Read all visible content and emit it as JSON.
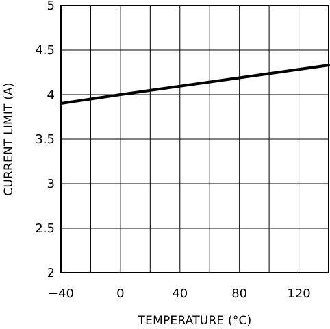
{
  "chart_data": {
    "type": "line",
    "title": "",
    "xlabel": "TEMPERATURE (°C)",
    "ylabel": "CURRENT LIMIT (A)",
    "xlim": [
      -40,
      140
    ],
    "ylim": [
      2,
      5
    ],
    "x_ticks": [
      -40,
      -20,
      0,
      20,
      40,
      60,
      80,
      100,
      120,
      140
    ],
    "x_tick_labels": [
      "−40",
      "",
      "0",
      "",
      "40",
      "",
      "80",
      "",
      "120",
      ""
    ],
    "y_ticks": [
      2,
      2.5,
      3,
      3.5,
      4,
      4.5,
      5
    ],
    "y_tick_labels": [
      "2",
      "2.5",
      "3",
      "3.5",
      "4",
      "4.5",
      "5"
    ],
    "grid": true,
    "series": [
      {
        "x": [
          -40,
          0,
          140
        ],
        "y": [
          3.9,
          4.0,
          4.33
        ],
        "color": "#000000"
      }
    ]
  }
}
